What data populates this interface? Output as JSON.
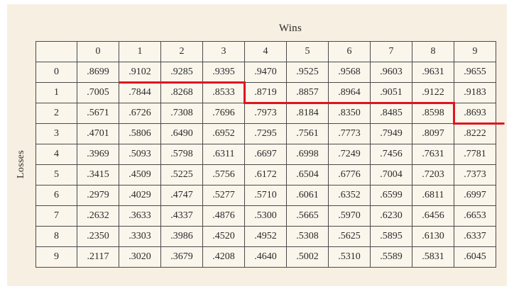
{
  "table": {
    "col_axis_label": "Wins",
    "row_axis_label": "Losses",
    "col_headers": [
      "0",
      "1",
      "2",
      "3",
      "4",
      "5",
      "6",
      "7",
      "8",
      "9"
    ],
    "rows": [
      {
        "loss": "0",
        "values": [
          ".8699",
          ".9102",
          ".9285",
          ".9395",
          ".9470",
          ".9525",
          ".9568",
          ".9603",
          ".9631",
          ".9655"
        ]
      },
      {
        "loss": "1",
        "values": [
          ".7005",
          ".7844",
          ".8268",
          ".8533",
          ".8719",
          ".8857",
          ".8964",
          ".9051",
          ".9122",
          ".9183"
        ]
      },
      {
        "loss": "2",
        "values": [
          ".5671",
          ".6726",
          ".7308",
          ".7696",
          ".7973",
          ".8184",
          ".8350",
          ".8485",
          ".8598",
          ".8693"
        ]
      },
      {
        "loss": "3",
        "values": [
          ".4701",
          ".5806",
          ".6490",
          ".6952",
          ".7295",
          ".7561",
          ".7773",
          ".7949",
          ".8097",
          ".8222"
        ]
      },
      {
        "loss": "4",
        "values": [
          ".3969",
          ".5093",
          ".5798",
          ".6311",
          ".6697",
          ".6998",
          ".7249",
          ".7456",
          ".7631",
          ".7781"
        ]
      },
      {
        "loss": "5",
        "values": [
          ".3415",
          ".4509",
          ".5225",
          ".5756",
          ".6172",
          ".6504",
          ".6776",
          ".7004",
          ".7203",
          ".7373"
        ]
      },
      {
        "loss": "6",
        "values": [
          ".2979",
          ".4029",
          ".4747",
          ".5277",
          ".5710",
          ".6061",
          ".6352",
          ".6599",
          ".6811",
          ".6997"
        ]
      },
      {
        "loss": "7",
        "values": [
          ".2632",
          ".3633",
          ".4337",
          ".4876",
          ".5300",
          ".5665",
          ".5970",
          ".6230",
          ".6456",
          ".6653"
        ]
      },
      {
        "loss": "8",
        "values": [
          ".2350",
          ".3303",
          ".3986",
          ".4520",
          ".4952",
          ".5308",
          ".5625",
          ".5895",
          ".6130",
          ".6337"
        ]
      },
      {
        "loss": "9",
        "values": [
          ".2117",
          ".3020",
          ".3679",
          ".4208",
          ".4640",
          ".5002",
          ".5310",
          ".5589",
          ".5831",
          ".6045"
        ]
      }
    ]
  },
  "annotation": {
    "color": "#e0141e"
  }
}
